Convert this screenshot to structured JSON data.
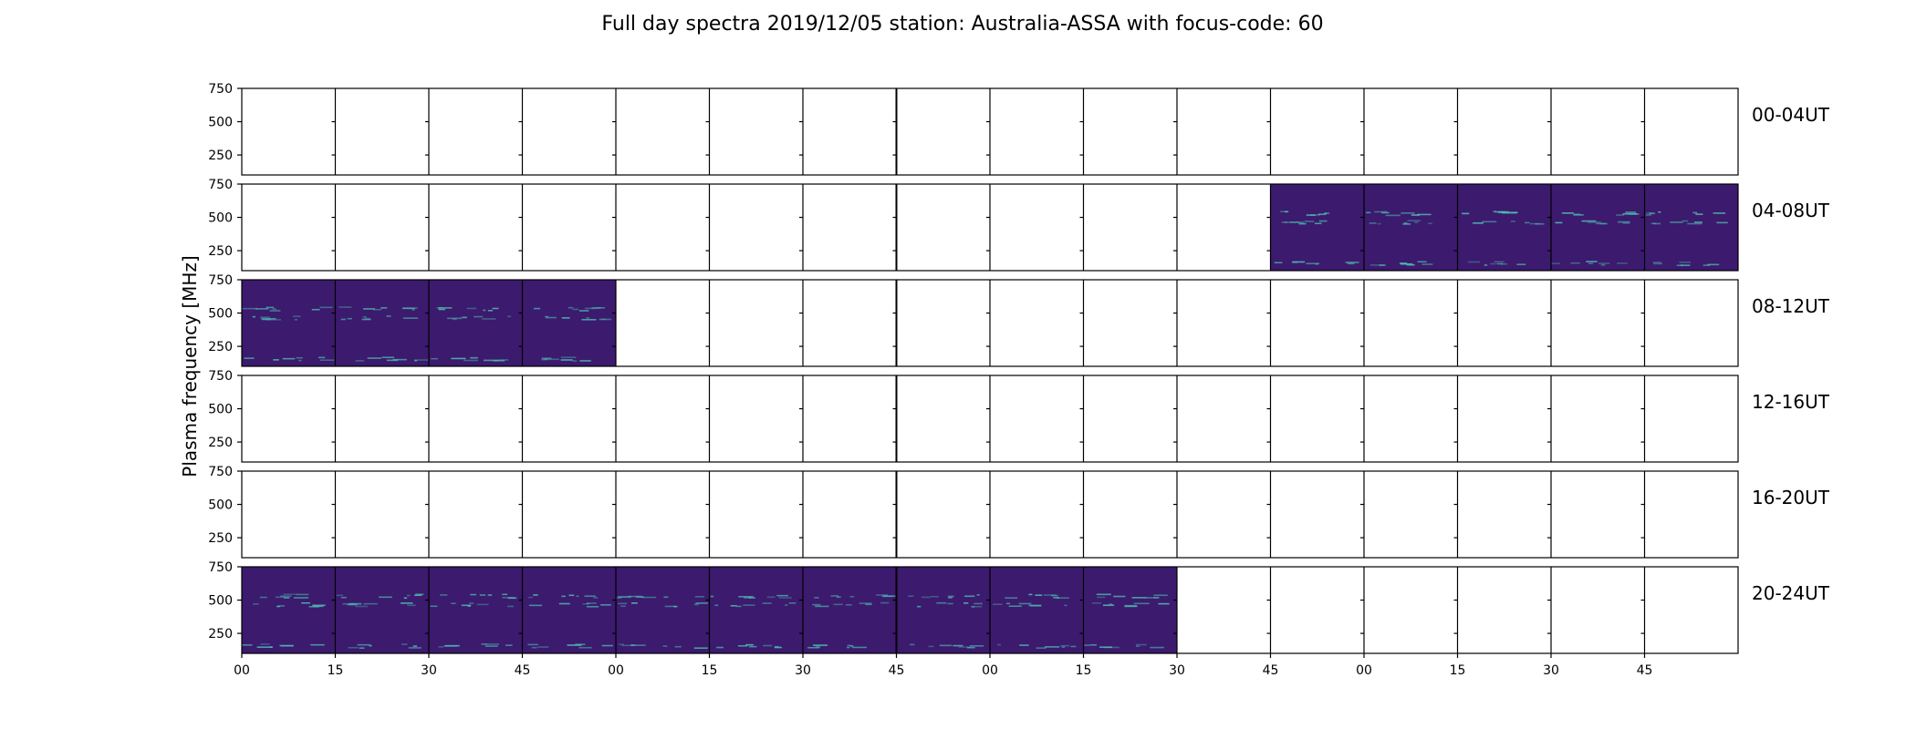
{
  "chart_data": {
    "type": "heatmap",
    "title": "Full day spectra 2019/12/05 station: Australia-ASSA with focus-code: 60",
    "ylabel": "Plasma frequency [MHz]",
    "xlabel": "",
    "ylim": [
      100,
      750
    ],
    "y_ticks": [
      "750",
      "500",
      "250"
    ],
    "y_tick_values": [
      750,
      500,
      250
    ],
    "x_tick_labels": [
      "00",
      "15",
      "30",
      "45",
      "00",
      "15",
      "30",
      "45",
      "00",
      "15",
      "30",
      "45",
      "00",
      "15",
      "30",
      "45"
    ],
    "columns_per_row": 16,
    "minutes_per_column": 15,
    "rows": [
      {
        "label": "00-04UT",
        "data_columns": []
      },
      {
        "label": "04-08UT",
        "data_columns": [
          11,
          12,
          13,
          14,
          15
        ]
      },
      {
        "label": "08-12UT",
        "data_columns": [
          0,
          1,
          2,
          3
        ]
      },
      {
        "label": "12-16UT",
        "data_columns": []
      },
      {
        "label": "16-20UT",
        "data_columns": []
      },
      {
        "label": "20-24UT",
        "data_columns": [
          0,
          1,
          2,
          3,
          4,
          5,
          6,
          7,
          8,
          9
        ]
      }
    ],
    "grid": false,
    "colors": {
      "background_spectrum": "#3c1a6e",
      "bright_line": "#4fc3b4",
      "axes": "#000000"
    }
  }
}
